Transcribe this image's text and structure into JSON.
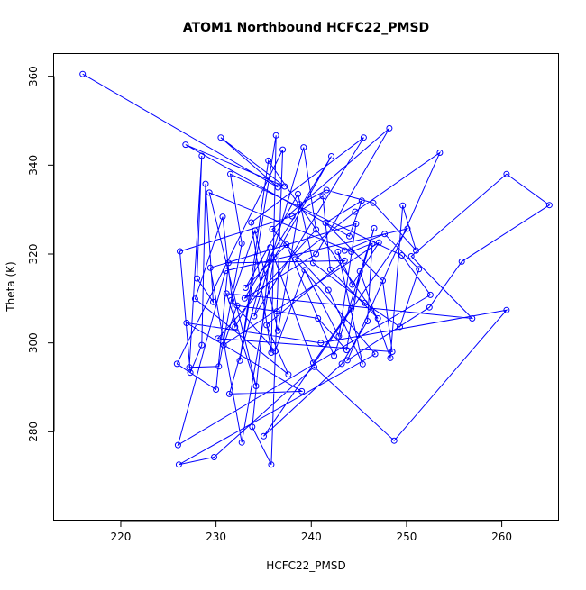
{
  "chart_data": {
    "type": "line",
    "title": "ATOM1 Northbound HCFC22_PMSD",
    "xlabel": "HCFC22_PMSD",
    "ylabel": "Theta (K)",
    "xlim": [
      213,
      266
    ],
    "ylim": [
      260,
      365
    ],
    "xticks": [
      "220",
      "230",
      "240",
      "250",
      "260"
    ],
    "yticks": [
      "280",
      "300",
      "320",
      "340",
      "360"
    ],
    "grid": false,
    "legend": "none",
    "line_color": "#0000ff",
    "marker": "open-circle",
    "series": [
      {
        "points": [
          [
            216,
            360.5
          ],
          [
            236.5,
            335
          ],
          [
            230.5,
            346.2
          ],
          [
            237.2,
            335.2
          ],
          [
            226.8,
            344.6
          ],
          [
            244,
            324
          ],
          [
            245.3,
            332
          ],
          [
            241.5,
            327
          ],
          [
            247.5,
            314
          ],
          [
            248.5,
            298
          ],
          [
            230.2,
            301
          ],
          [
            240.5,
            325.5
          ],
          [
            239.2,
            344
          ],
          [
            234,
            306
          ],
          [
            245.5,
            346.2
          ],
          [
            233.7,
            327.1
          ],
          [
            235.8,
            297.8
          ],
          [
            236.3,
            346.7
          ],
          [
            232.5,
            296
          ],
          [
            235.5,
            341
          ],
          [
            247,
            305.5
          ],
          [
            242,
            316.5
          ],
          [
            241.2,
            333
          ],
          [
            238,
            328.5
          ],
          [
            226.2,
            320.6
          ],
          [
            227.3,
            293.3
          ],
          [
            228.5,
            299.5
          ],
          [
            228.9,
            335.8
          ],
          [
            229.7,
            309.2
          ],
          [
            228,
            314.5
          ],
          [
            228.5,
            342.1
          ],
          [
            227.2,
            294.5
          ],
          [
            230.3,
            294.7
          ],
          [
            232.7,
            322.4
          ],
          [
            231.5,
            338
          ],
          [
            249.5,
            319.7
          ],
          [
            252.5,
            310.8
          ],
          [
            226,
            277
          ],
          [
            231,
            316.2
          ],
          [
            250.1,
            325.7
          ],
          [
            235,
            279
          ],
          [
            243.2,
            295.3
          ],
          [
            245.9,
            304.9
          ],
          [
            246.4,
            322.4
          ],
          [
            244.2,
            320.5
          ],
          [
            229.3,
            333.8
          ],
          [
            234.2,
            290.3
          ],
          [
            231.1,
            311.1
          ],
          [
            256.9,
            305.5
          ],
          [
            250.5,
            319.5
          ],
          [
            260.5,
            338
          ],
          [
            265,
            331
          ],
          [
            255.8,
            318.3
          ],
          [
            252.4,
            308
          ],
          [
            243.8,
            296.1
          ],
          [
            253.5,
            342.8
          ],
          [
            244.6,
            329.5
          ],
          [
            238.3,
            318.8
          ],
          [
            246.7,
            297.5
          ],
          [
            226.1,
            272.6
          ],
          [
            229.8,
            274.3
          ],
          [
            240.3,
            294.6
          ],
          [
            248.7,
            278
          ],
          [
            260.5,
            307.4
          ],
          [
            241,
            300
          ],
          [
            226.9,
            304.5
          ],
          [
            239,
            289.1
          ],
          [
            231.4,
            288.5
          ],
          [
            235.7,
            321.5
          ],
          [
            233.8,
            281.1
          ],
          [
            235.8,
            272.6
          ],
          [
            237,
            343.5
          ],
          [
            225.9,
            295.3
          ],
          [
            230,
            289.5
          ],
          [
            231.3,
            318
          ],
          [
            243.5,
            318.5
          ],
          [
            235.3,
            304
          ],
          [
            237.6,
            292.9
          ],
          [
            227.8,
            309.9
          ],
          [
            230.7,
            328.4
          ],
          [
            232,
            303.6
          ],
          [
            242.1,
            342
          ],
          [
            233,
            310
          ],
          [
            240.5,
            320
          ],
          [
            248.2,
            348.3
          ],
          [
            235.9,
            325.6
          ],
          [
            241.8,
            311.9
          ],
          [
            245.4,
            295.2
          ],
          [
            242.8,
            320.5
          ],
          [
            244.3,
            313.1
          ],
          [
            247.1,
            322.6
          ],
          [
            230.8,
            299.5
          ],
          [
            232.2,
            308.4
          ],
          [
            236.4,
            307.1
          ],
          [
            240.7,
            305.5
          ],
          [
            243.7,
            298.4
          ],
          [
            245.1,
            316.1
          ],
          [
            248.3,
            296.6
          ],
          [
            249.6,
            330.9
          ],
          [
            251,
            320.8
          ],
          [
            246.5,
            331.5
          ],
          [
            241.6,
            334.4
          ],
          [
            238.8,
            331.2
          ],
          [
            236.5,
            302.7
          ],
          [
            234.1,
            325.3
          ],
          [
            231.6,
            309.6
          ],
          [
            236.2,
            298.1
          ],
          [
            239.3,
            316.4
          ],
          [
            242.9,
            301.5
          ],
          [
            244.7,
            326.8
          ],
          [
            229.4,
            316.9
          ],
          [
            232.7,
            277.6
          ],
          [
            236.1,
            319.2
          ],
          [
            240.2,
            295.5
          ],
          [
            244.2,
            307.8
          ],
          [
            246.6,
            325.8
          ],
          [
            242.4,
            297.1
          ],
          [
            237.4,
            322.1
          ],
          [
            233.1,
            312.4
          ],
          [
            238.6,
            333.5
          ],
          [
            240.2,
            318
          ],
          [
            245.6,
            309
          ],
          [
            249.3,
            303.6
          ],
          [
            251.3,
            316.6
          ],
          [
            247.7,
            324.5
          ],
          [
            243.5,
            320.8
          ]
        ]
      }
    ]
  }
}
